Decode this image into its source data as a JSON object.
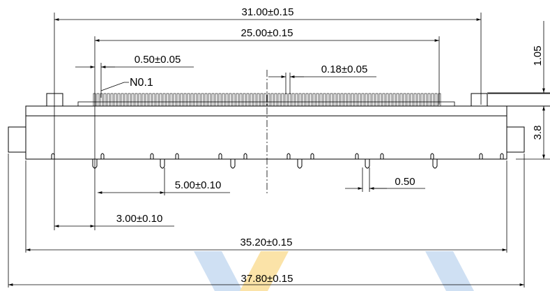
{
  "dimensions": {
    "overall_width": "31.00±0.15",
    "pin_span": "25.00±0.15",
    "pin_pitch": "0.50±0.05",
    "chamfer": "N0.1",
    "pin_width": "0.18±0.05",
    "height_top": "1.05",
    "body_height": "3.8",
    "post_pitch": "5.00±0.10",
    "post_width": "0.50",
    "post_offset": "3.00±0.10",
    "board_width": "35.20±0.15",
    "total_width": "37.80±0.15"
  },
  "watermark_colors": {
    "blue": "#1c6fc4",
    "orange": "#f5b400"
  }
}
